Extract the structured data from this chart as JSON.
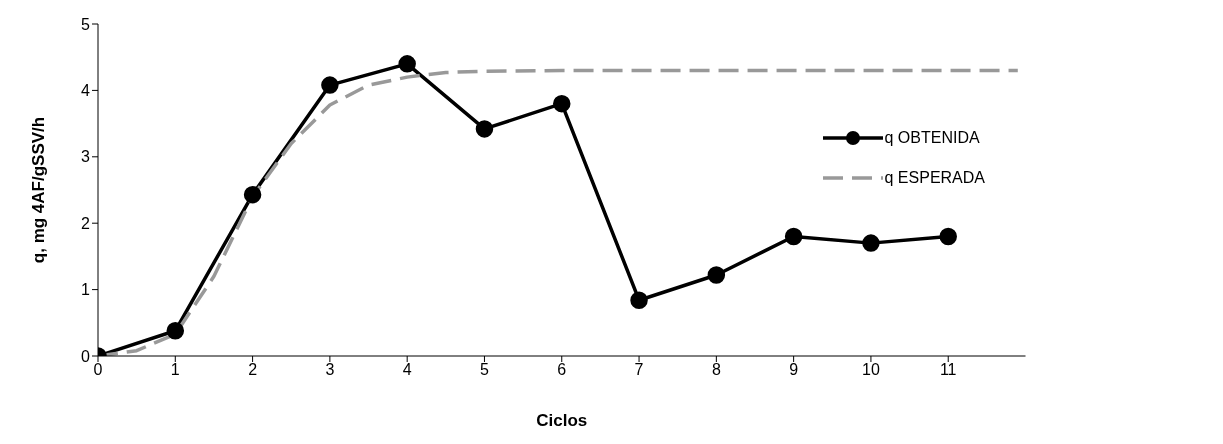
{
  "chart_data": {
    "type": "line",
    "xlabel": "Ciclos",
    "ylabel": "q, mg 4AF/gSSV/h",
    "xlim": [
      0,
      12
    ],
    "xticks": [
      0,
      1,
      2,
      3,
      4,
      5,
      6,
      7,
      8,
      9,
      10,
      11
    ],
    "ylim": [
      0,
      5
    ],
    "yticks": [
      0,
      1,
      2,
      3,
      4,
      5
    ],
    "grid": false,
    "legend": "right",
    "series": [
      {
        "name": "q OBTENIDA",
        "color": "#000000",
        "marker": "circle",
        "line_style": "solid",
        "x": [
          0,
          1,
          2,
          3,
          4,
          5,
          6,
          7,
          8,
          9,
          10,
          11
        ],
        "values": [
          0,
          0.38,
          2.43,
          4.08,
          4.4,
          3.42,
          3.8,
          0.84,
          1.22,
          1.8,
          1.7,
          1.8
        ]
      },
      {
        "name": "q ESPERADA",
        "color": "#999999",
        "marker": "none",
        "line_style": "dashed",
        "x": [
          0,
          0.5,
          1,
          1.5,
          2,
          2.5,
          3,
          3.5,
          4,
          4.5,
          5,
          6,
          7,
          8,
          9,
          10,
          11,
          11.9
        ],
        "values": [
          0,
          0.08,
          0.33,
          1.2,
          2.4,
          3.2,
          3.78,
          4.08,
          4.2,
          4.27,
          4.29,
          4.3,
          4.3,
          4.3,
          4.3,
          4.3,
          4.3,
          4.3
        ]
      }
    ]
  }
}
